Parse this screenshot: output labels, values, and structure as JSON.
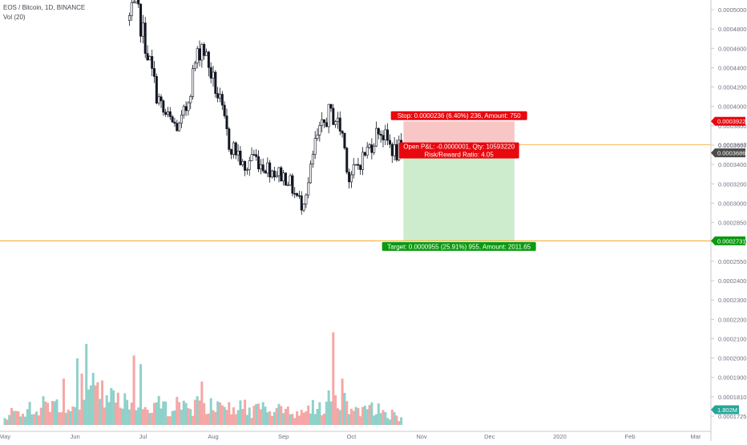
{
  "header": {
    "symbol": "EOS / Bitcoin, 1D, BINANCE",
    "volume_indicator": "Vol (20)"
  },
  "colors": {
    "up": "#26a69a",
    "down": "#ef5350",
    "volume_up": "#8fd1c9",
    "volume_down": "#f5a7a5",
    "stop_zone": "#f9c6c6",
    "target_zone": "#cdeccd",
    "stop_label": "#e8080f",
    "target_label": "#0b9a0f",
    "current_price_label": "#4a4a4a",
    "level_line": "#f5a623"
  },
  "position": {
    "stop_label": "Stop: 0.0000236 (6.40%) 236, Amount: 750",
    "open_pnl_label": "Open P&L:  -0.0000001, Qty: 10593220",
    "risk_reward_label": "Risk/Reward Ratio: 4.05",
    "target_label": "Target: 0.0000955 (25.91%) 955, Amount: 2011.65",
    "entry_price": 0.0003687,
    "stop_price": 0.0003922,
    "target_price": 0.0002731
  },
  "price_axis": {
    "ticks": [
      "0.0005000",
      "0.0004800",
      "0.0004600",
      "0.0004400",
      "0.0004200",
      "0.0004000",
      "0.0003800",
      "0.0003600",
      "0.0003400",
      "0.0003200",
      "0.0003000",
      "0.0002850",
      "0.0002700",
      "0.0002550",
      "0.0002400",
      "0.0002300",
      "0.0002200",
      "0.0002100",
      "0.0002000",
      "0.0001900",
      "0.0001810",
      "0.0001725"
    ],
    "stop_tag": "0.0003922",
    "entry_tag": "0.0003687",
    "current_tag": "0.0003686",
    "target_tag": "0.0002731",
    "volume_tag": "1.802M"
  },
  "time_axis": {
    "labels": [
      "May",
      "Jun",
      "Jul",
      "Aug",
      "Sep",
      "Oct",
      "Nov",
      "Dec",
      "2020",
      "Feb",
      "Mar"
    ]
  },
  "chart_data": {
    "type": "candlestick",
    "title": "EOS / Bitcoin, 1D, BINANCE",
    "x_range": [
      "2019-05-01",
      "2020-03-01"
    ],
    "ylim": [
      0.000255,
      0.000505
    ],
    "grid": false,
    "price_anchors": [
      {
        "date": "2019-06-25",
        "close": 0.000495
      },
      {
        "date": "2019-06-28",
        "close": 0.000505
      },
      {
        "date": "2019-07-01",
        "close": 0.00048
      },
      {
        "date": "2019-07-04",
        "close": 0.00045
      },
      {
        "date": "2019-07-07",
        "close": 0.00042
      },
      {
        "date": "2019-07-10",
        "close": 0.0004
      },
      {
        "date": "2019-07-14",
        "close": 0.00039
      },
      {
        "date": "2019-07-17",
        "close": 0.000385
      },
      {
        "date": "2019-07-20",
        "close": 0.000405
      },
      {
        "date": "2019-07-24",
        "close": 0.00045
      },
      {
        "date": "2019-07-27",
        "close": 0.00047
      },
      {
        "date": "2019-07-31",
        "close": 0.00044
      },
      {
        "date": "2019-08-04",
        "close": 0.00041
      },
      {
        "date": "2019-08-08",
        "close": 0.00037
      },
      {
        "date": "2019-08-12",
        "close": 0.00036
      },
      {
        "date": "2019-08-15",
        "close": 0.00034
      },
      {
        "date": "2019-08-18",
        "close": 0.00036
      },
      {
        "date": "2019-08-22",
        "close": 0.00035
      },
      {
        "date": "2019-08-26",
        "close": 0.000345
      },
      {
        "date": "2019-08-30",
        "close": 0.00034
      },
      {
        "date": "2019-09-03",
        "close": 0.000335
      },
      {
        "date": "2019-09-06",
        "close": 0.00032
      },
      {
        "date": "2019-09-09",
        "close": 0.00031
      },
      {
        "date": "2019-09-12",
        "close": 0.00033
      },
      {
        "date": "2019-09-15",
        "close": 0.00037
      },
      {
        "date": "2019-09-18",
        "close": 0.000385
      },
      {
        "date": "2019-09-21",
        "close": 0.0004
      },
      {
        "date": "2019-09-24",
        "close": 0.000395
      },
      {
        "date": "2019-09-27",
        "close": 0.00038
      },
      {
        "date": "2019-09-30",
        "close": 0.000335
      },
      {
        "date": "2019-10-03",
        "close": 0.000345
      },
      {
        "date": "2019-10-07",
        "close": 0.00036
      },
      {
        "date": "2019-10-10",
        "close": 0.00037
      },
      {
        "date": "2019-10-13",
        "close": 0.000385
      },
      {
        "date": "2019-10-16",
        "close": 0.000375
      },
      {
        "date": "2019-10-19",
        "close": 0.000365
      },
      {
        "date": "2019-10-21",
        "close": 0.00036
      },
      {
        "date": "2019-10-23",
        "close": 0.0003686
      }
    ],
    "volume_anchors": [
      {
        "date": "2019-05-01",
        "value": 0.4
      },
      {
        "date": "2019-05-25",
        "value": 0.8
      },
      {
        "date": "2019-06-05",
        "value": 1.4
      },
      {
        "date": "2019-06-20",
        "value": 0.8
      },
      {
        "date": "2019-07-10",
        "value": 0.7
      },
      {
        "date": "2019-08-01",
        "value": 0.7
      },
      {
        "date": "2019-09-01",
        "value": 0.5
      },
      {
        "date": "2019-09-15",
        "value": 0.6
      },
      {
        "date": "2019-09-22",
        "value": 1.0
      },
      {
        "date": "2019-10-10",
        "value": 0.6
      },
      {
        "date": "2019-10-23",
        "value": 0.3
      }
    ],
    "volume_peaks": [
      {
        "date": "2019-05-27",
        "value": 1.6
      },
      {
        "date": "2019-06-02",
        "value": 2.3
      },
      {
        "date": "2019-06-06",
        "value": 2.8
      },
      {
        "date": "2019-06-09",
        "value": 1.8
      },
      {
        "date": "2019-06-27",
        "value": 2.4
      },
      {
        "date": "2019-06-30",
        "value": 2.1
      },
      {
        "date": "2019-07-27",
        "value": 1.5
      },
      {
        "date": "2019-09-23",
        "value": 3.2
      },
      {
        "date": "2019-09-27",
        "value": 1.6
      }
    ],
    "volume_ylim": [
      0,
      3.6
    ]
  }
}
